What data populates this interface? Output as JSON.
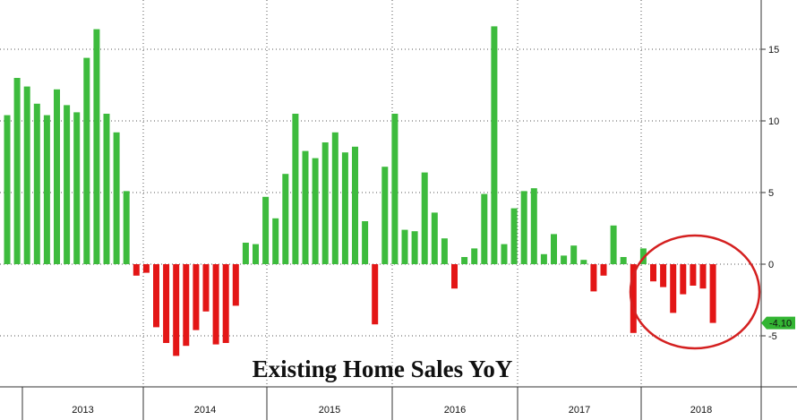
{
  "chart_data": {
    "type": "bar",
    "title": "Existing Home Sales YoY",
    "xlabel": "",
    "ylabel": "",
    "ylim": [
      -8,
      18
    ],
    "y_ticks": [
      -5,
      0,
      5,
      10,
      15
    ],
    "y_tick_labels": [
      "-5",
      "0",
      "5",
      "10",
      "15"
    ],
    "grid": true,
    "years": [
      "2013",
      "2014",
      "2015",
      "2016",
      "2017",
      "2018"
    ],
    "series": [
      {
        "values": [
          10.4,
          13.0,
          12.4,
          11.2,
          10.4,
          12.2,
          11.1,
          10.6,
          14.4,
          16.4,
          10.5,
          9.2,
          5.1,
          -0.8,
          -0.6,
          -4.4,
          -5.5,
          -6.4,
          -5.7,
          -4.6,
          -3.3,
          -5.6,
          -5.5,
          -2.9,
          1.5,
          1.4,
          4.7,
          3.2,
          6.3,
          10.5,
          7.9,
          7.4,
          8.5,
          9.2,
          7.8,
          8.2,
          3.0,
          -4.2,
          6.8,
          10.5,
          2.4,
          2.3,
          6.4,
          3.6,
          1.8,
          -1.7,
          0.5,
          1.1,
          4.9,
          16.6,
          1.4,
          3.9,
          5.1,
          5.3,
          0.7,
          2.1,
          0.6,
          1.3,
          0.3,
          -1.9,
          -0.8,
          2.7,
          0.5,
          -4.8,
          1.1,
          -1.2,
          -1.6,
          -3.4,
          -2.1,
          -1.5,
          -1.7,
          -4.1
        ]
      }
    ],
    "positive_color": "#3dbb3d",
    "negative_color": "#e31616",
    "last_value_label": "-4.10",
    "last_value_color": "#33b533",
    "highlight_circle_color": "#d42020"
  }
}
